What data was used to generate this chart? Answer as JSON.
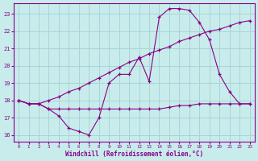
{
  "xlabel": "Windchill (Refroidissement éolien,°C)",
  "bg_color": "#c8ecec",
  "grid_color": "#aad4d4",
  "line_color": "#880088",
  "xlim": [
    -0.5,
    23.5
  ],
  "ylim": [
    15.6,
    23.6
  ],
  "xticks": [
    0,
    1,
    2,
    3,
    4,
    5,
    6,
    7,
    8,
    9,
    10,
    11,
    12,
    13,
    14,
    15,
    16,
    17,
    18,
    19,
    20,
    21,
    22,
    23
  ],
  "yticks": [
    16,
    17,
    18,
    19,
    20,
    21,
    22,
    23
  ],
  "line1_x": [
    0,
    1,
    2,
    3,
    4,
    5,
    6,
    7,
    8,
    9,
    10,
    11,
    12,
    13,
    14,
    15,
    16,
    17,
    18,
    19,
    20,
    21,
    22,
    23
  ],
  "line1_y": [
    18.0,
    17.8,
    17.8,
    17.5,
    17.1,
    16.4,
    16.2,
    16.0,
    17.0,
    19.0,
    19.5,
    19.5,
    20.5,
    19.1,
    22.8,
    23.3,
    23.3,
    23.2,
    22.5,
    21.5,
    19.5,
    18.5,
    17.8,
    17.8
  ],
  "line2_x": [
    0,
    1,
    2,
    3,
    4,
    5,
    6,
    7,
    8,
    9,
    10,
    11,
    12,
    13,
    14,
    15,
    16,
    17,
    18,
    19,
    20,
    21,
    22,
    23
  ],
  "line2_y": [
    18.0,
    17.8,
    17.8,
    17.5,
    17.5,
    17.5,
    17.5,
    17.5,
    17.5,
    17.5,
    17.5,
    17.5,
    17.5,
    17.5,
    17.5,
    17.6,
    17.7,
    17.7,
    17.8,
    17.8,
    17.8,
    17.8,
    17.8,
    17.8
  ],
  "line3_x": [
    0,
    1,
    2,
    3,
    4,
    5,
    6,
    7,
    8,
    9,
    10,
    11,
    12,
    13,
    14,
    15,
    16,
    17,
    18,
    19,
    20,
    21,
    22,
    23
  ],
  "line3_y": [
    18.0,
    17.8,
    17.8,
    18.0,
    18.2,
    18.5,
    18.7,
    19.0,
    19.3,
    19.6,
    19.9,
    20.2,
    20.4,
    20.7,
    20.9,
    21.1,
    21.4,
    21.6,
    21.8,
    22.0,
    22.1,
    22.3,
    22.5,
    22.6
  ]
}
